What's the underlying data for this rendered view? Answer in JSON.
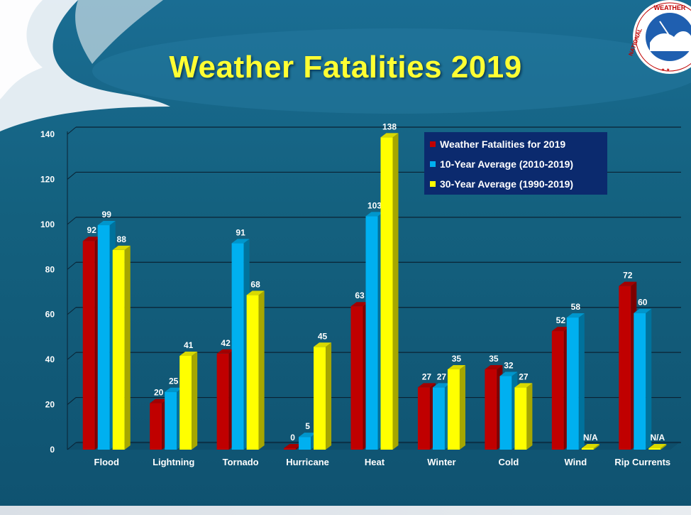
{
  "slide": {
    "title": "Weather Fatalities 2019",
    "logo_text": "NATIONAL WEATHER SE"
  },
  "colors": {
    "background": "#156585",
    "title": "#ffff33",
    "series": [
      "#c00000",
      "#00b0f0",
      "#ffff00"
    ],
    "legend_bg": "#0b2a6e"
  },
  "chart_data": {
    "type": "bar",
    "title": "Weather Fatalities 2019",
    "xlabel": "",
    "ylabel": "",
    "ylim": [
      0,
      140
    ],
    "yticks": [
      0,
      20,
      40,
      60,
      80,
      100,
      120,
      140
    ],
    "grid": true,
    "legend_position": "top-right",
    "categories": [
      "Flood",
      "Lightning",
      "Tornado",
      "Hurricane",
      "Heat",
      "Winter",
      "Cold",
      "Wind",
      "Rip Currents"
    ],
    "series": [
      {
        "name": "Weather Fatalities for 2019",
        "color": "#c00000",
        "values": [
          92,
          20,
          42,
          0,
          63,
          27,
          35,
          52,
          72
        ],
        "labels": [
          "92",
          "20",
          "42",
          "0",
          "63",
          "27",
          "35",
          "52",
          "72"
        ]
      },
      {
        "name": "10-Year Average (2010-2019)",
        "color": "#00b0f0",
        "values": [
          99,
          25,
          91,
          5,
          103,
          27,
          32,
          58,
          60
        ],
        "labels": [
          "99",
          "25",
          "91",
          "5",
          "103",
          "27",
          "32",
          "58",
          "60"
        ]
      },
      {
        "name": "30-Year Average (1990-2019)",
        "color": "#ffff00",
        "values": [
          88,
          41,
          68,
          45,
          138,
          35,
          27,
          null,
          null
        ],
        "labels": [
          "88",
          "41",
          "68",
          "45",
          "138",
          "35",
          "27",
          "N/A",
          "N/A"
        ]
      }
    ]
  }
}
